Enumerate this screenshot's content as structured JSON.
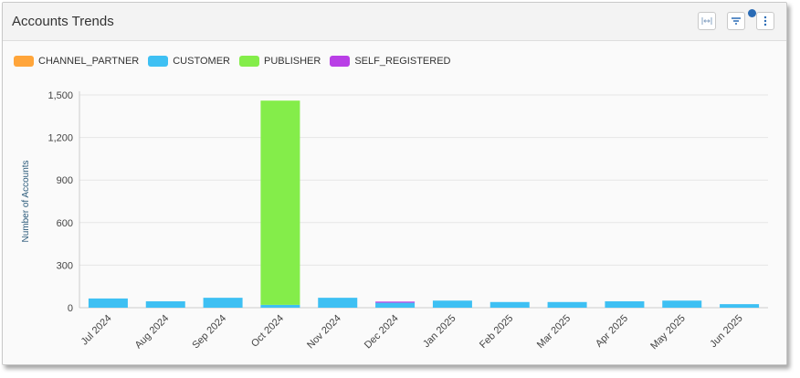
{
  "header": {
    "title": "Accounts Trends"
  },
  "toolbar": {
    "expand_icon": "expand-horizontal-icon",
    "filter_icon": "filter-icon",
    "more_icon": "more-vertical-icon"
  },
  "chart_data": {
    "type": "bar",
    "stacked": true,
    "categories": [
      "Jul 2024",
      "Aug 2024",
      "Sep 2024",
      "Oct 2024",
      "Nov 2024",
      "Dec 2024",
      "Jan 2025",
      "Feb 2025",
      "Mar 2025",
      "Apr 2025",
      "May 2025",
      "Jun 2025"
    ],
    "series": [
      {
        "name": "CHANNEL_PARTNER",
        "color": "#ffa53a",
        "values": [
          0,
          0,
          0,
          0,
          0,
          0,
          0,
          0,
          0,
          0,
          0,
          0
        ]
      },
      {
        "name": "CUSTOMER",
        "color": "#3ec0f3",
        "values": [
          65,
          45,
          70,
          20,
          70,
          35,
          50,
          40,
          40,
          45,
          50,
          25
        ]
      },
      {
        "name": "PUBLISHER",
        "color": "#84ed4a",
        "values": [
          0,
          0,
          0,
          1440,
          0,
          0,
          0,
          0,
          0,
          0,
          0,
          0
        ]
      },
      {
        "name": "SELF_REGISTERED",
        "color": "#b93fe6",
        "values": [
          0,
          0,
          0,
          0,
          0,
          8,
          0,
          0,
          0,
          0,
          0,
          0
        ]
      }
    ],
    "ylabel": "Number of Accounts",
    "xlabel": "",
    "ylim": [
      0,
      1500
    ],
    "yticks": [
      "0",
      "300",
      "600",
      "900",
      "1,200",
      "1,500"
    ],
    "ytick_values": [
      0,
      300,
      600,
      900,
      1200,
      1500
    ],
    "grid": true,
    "legend_position": "top-left"
  }
}
